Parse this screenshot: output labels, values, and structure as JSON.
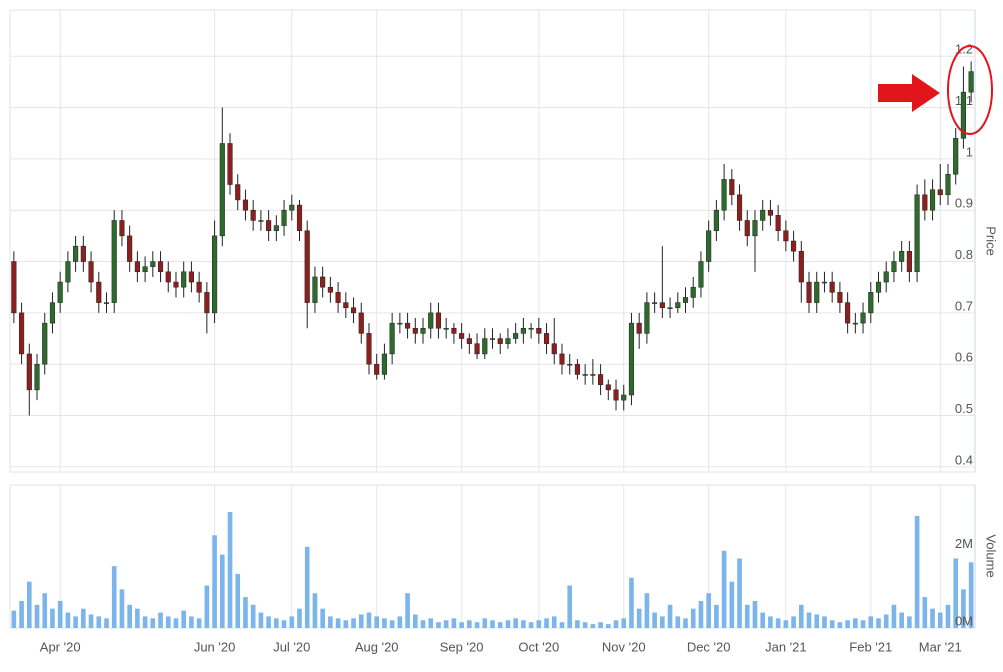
{
  "chart_data": [
    {
      "type": "candlestick",
      "categories": [
        null,
        null,
        null,
        null,
        null,
        null,
        "Apr '20",
        null,
        null,
        null,
        null,
        null,
        null,
        null,
        null,
        null,
        null,
        null,
        null,
        null,
        null,
        null,
        null,
        null,
        null,
        null,
        "Jun '20",
        null,
        null,
        null,
        null,
        null,
        null,
        null,
        null,
        null,
        "Jul '20",
        null,
        null,
        null,
        null,
        null,
        null,
        null,
        null,
        null,
        null,
        "Aug '20",
        null,
        null,
        null,
        null,
        null,
        null,
        null,
        null,
        null,
        null,
        "Sep '20",
        null,
        null,
        null,
        null,
        null,
        null,
        null,
        null,
        null,
        "Oct '20",
        null,
        null,
        null,
        null,
        null,
        null,
        null,
        null,
        null,
        null,
        "Nov '20",
        null,
        null,
        null,
        null,
        null,
        null,
        null,
        null,
        null,
        null,
        "Dec '20",
        null,
        null,
        null,
        null,
        null,
        null,
        null,
        null,
        null,
        "Jan '21",
        null,
        null,
        null,
        null,
        null,
        null,
        null,
        null,
        null,
        null,
        "Feb '21",
        null,
        null,
        null,
        null,
        null,
        null,
        null,
        null,
        "Mar '21",
        null,
        null,
        null,
        null
      ],
      "open": [
        0.8,
        0.7,
        0.62,
        0.55,
        0.6,
        0.68,
        0.72,
        0.76,
        0.8,
        0.83,
        0.8,
        0.76,
        0.72,
        0.72,
        0.88,
        0.85,
        0.8,
        0.78,
        0.79,
        0.8,
        0.78,
        0.76,
        0.75,
        0.78,
        0.76,
        0.74,
        0.7,
        0.85,
        1.03,
        0.95,
        0.92,
        0.9,
        0.88,
        0.88,
        0.86,
        0.87,
        0.9,
        0.91,
        0.86,
        0.72,
        0.77,
        0.75,
        0.74,
        0.72,
        0.71,
        0.7,
        0.66,
        0.6,
        0.58,
        0.62,
        0.68,
        0.68,
        0.67,
        0.66,
        0.67,
        0.7,
        0.67,
        0.67,
        0.66,
        0.65,
        0.64,
        0.62,
        0.65,
        0.65,
        0.64,
        0.65,
        0.66,
        0.67,
        0.67,
        0.66,
        0.64,
        0.62,
        0.6,
        0.6,
        0.58,
        0.58,
        0.58,
        0.56,
        0.55,
        0.53,
        0.54,
        0.68,
        0.66,
        0.72,
        0.72,
        0.71,
        0.71,
        0.72,
        0.73,
        0.75,
        0.8,
        0.86,
        0.9,
        0.96,
        0.93,
        0.88,
        0.85,
        0.88,
        0.9,
        0.89,
        0.86,
        0.84,
        0.82,
        0.76,
        0.72,
        0.76,
        0.76,
        0.74,
        0.72,
        0.68,
        0.68,
        0.7,
        0.74,
        0.76,
        0.78,
        0.8,
        0.82,
        0.78,
        0.93,
        0.9,
        0.94,
        0.93,
        0.97,
        1.04,
        1.13
      ],
      "high": [
        0.82,
        0.72,
        0.64,
        0.62,
        0.7,
        0.74,
        0.78,
        0.82,
        0.85,
        0.85,
        0.82,
        0.78,
        0.74,
        0.9,
        0.9,
        0.87,
        0.82,
        0.81,
        0.82,
        0.82,
        0.8,
        0.78,
        0.8,
        0.8,
        0.78,
        0.76,
        0.88,
        1.1,
        1.05,
        0.97,
        0.94,
        0.92,
        0.9,
        0.9,
        0.89,
        0.92,
        0.93,
        0.92,
        0.88,
        0.79,
        0.79,
        0.77,
        0.76,
        0.74,
        0.73,
        0.72,
        0.68,
        0.62,
        0.64,
        0.7,
        0.7,
        0.7,
        0.69,
        0.69,
        0.72,
        0.72,
        0.69,
        0.68,
        0.68,
        0.66,
        0.66,
        0.67,
        0.67,
        0.66,
        0.67,
        0.68,
        0.69,
        0.68,
        0.69,
        0.68,
        0.69,
        0.64,
        0.62,
        0.61,
        0.6,
        0.61,
        0.6,
        0.57,
        0.57,
        0.56,
        0.7,
        0.7,
        0.74,
        0.74,
        0.83,
        0.73,
        0.74,
        0.75,
        0.77,
        0.82,
        0.88,
        0.92,
        0.99,
        0.98,
        0.95,
        0.9,
        0.9,
        0.92,
        0.92,
        0.91,
        0.88,
        0.86,
        0.84,
        0.78,
        0.78,
        0.78,
        0.78,
        0.76,
        0.74,
        0.7,
        0.72,
        0.76,
        0.78,
        0.8,
        0.82,
        0.84,
        0.84,
        0.95,
        0.96,
        0.96,
        0.99,
        0.99,
        1.06,
        1.18,
        1.19
      ],
      "low": [
        0.68,
        0.6,
        0.5,
        0.53,
        0.58,
        0.66,
        0.7,
        0.74,
        0.78,
        0.78,
        0.74,
        0.7,
        0.7,
        0.7,
        0.83,
        0.78,
        0.76,
        0.76,
        0.77,
        0.76,
        0.74,
        0.73,
        0.73,
        0.74,
        0.72,
        0.66,
        0.68,
        0.83,
        0.93,
        0.9,
        0.88,
        0.86,
        0.86,
        0.84,
        0.84,
        0.85,
        0.88,
        0.84,
        0.67,
        0.7,
        0.73,
        0.72,
        0.7,
        0.69,
        0.68,
        0.64,
        0.58,
        0.57,
        0.57,
        0.6,
        0.66,
        0.65,
        0.64,
        0.64,
        0.65,
        0.65,
        0.65,
        0.64,
        0.63,
        0.62,
        0.61,
        0.61,
        0.63,
        0.62,
        0.63,
        0.64,
        0.64,
        0.65,
        0.64,
        0.62,
        0.6,
        0.58,
        0.58,
        0.57,
        0.56,
        0.56,
        0.54,
        0.53,
        0.51,
        0.51,
        0.52,
        0.63,
        0.64,
        0.7,
        0.69,
        0.69,
        0.7,
        0.7,
        0.71,
        0.73,
        0.78,
        0.84,
        0.88,
        0.91,
        0.86,
        0.83,
        0.78,
        0.86,
        0.87,
        0.84,
        0.82,
        0.8,
        0.72,
        0.7,
        0.7,
        0.74,
        0.72,
        0.7,
        0.66,
        0.66,
        0.66,
        0.68,
        0.72,
        0.74,
        0.76,
        0.78,
        0.76,
        0.76,
        0.88,
        0.88,
        0.91,
        0.91,
        0.95,
        1.02,
        1.11
      ],
      "close": [
        0.7,
        0.62,
        0.55,
        0.6,
        0.68,
        0.72,
        0.76,
        0.8,
        0.83,
        0.8,
        0.76,
        0.72,
        0.72,
        0.88,
        0.85,
        0.8,
        0.78,
        0.79,
        0.8,
        0.78,
        0.76,
        0.75,
        0.78,
        0.76,
        0.74,
        0.7,
        0.85,
        1.03,
        0.95,
        0.92,
        0.9,
        0.88,
        0.88,
        0.86,
        0.87,
        0.9,
        0.91,
        0.86,
        0.72,
        0.77,
        0.75,
        0.74,
        0.72,
        0.71,
        0.7,
        0.66,
        0.6,
        0.58,
        0.62,
        0.68,
        0.68,
        0.67,
        0.66,
        0.67,
        0.7,
        0.67,
        0.67,
        0.66,
        0.65,
        0.64,
        0.62,
        0.65,
        0.65,
        0.64,
        0.65,
        0.66,
        0.67,
        0.67,
        0.66,
        0.64,
        0.62,
        0.6,
        0.6,
        0.58,
        0.58,
        0.58,
        0.56,
        0.55,
        0.53,
        0.54,
        0.68,
        0.66,
        0.72,
        0.72,
        0.71,
        0.71,
        0.72,
        0.73,
        0.75,
        0.8,
        0.86,
        0.9,
        0.96,
        0.93,
        0.88,
        0.85,
        0.88,
        0.9,
        0.89,
        0.86,
        0.84,
        0.82,
        0.76,
        0.72,
        0.76,
        0.76,
        0.74,
        0.72,
        0.68,
        0.68,
        0.7,
        0.74,
        0.76,
        0.78,
        0.8,
        0.82,
        0.78,
        0.93,
        0.9,
        0.94,
        0.93,
        0.97,
        1.04,
        1.13,
        1.17
      ],
      "up_color": "#2d6b2d",
      "down_color": "#8e1f1f",
      "ylim": [
        0.39,
        1.29
      ],
      "yticks": [
        0.4,
        0.5,
        0.6,
        0.7,
        0.8,
        0.9,
        1,
        1.1,
        1.2
      ],
      "y_label": "Price",
      "grid": true
    },
    {
      "type": "bar",
      "color": "#7cb5ec",
      "values": [
        450000,
        700000,
        1200000,
        600000,
        900000,
        500000,
        700000,
        400000,
        300000,
        500000,
        350000,
        300000,
        250000,
        1600000,
        1000000,
        600000,
        500000,
        300000,
        250000,
        400000,
        300000,
        250000,
        450000,
        300000,
        250000,
        1100000,
        2400000,
        1900000,
        3000000,
        1400000,
        800000,
        600000,
        400000,
        300000,
        250000,
        200000,
        300000,
        500000,
        2100000,
        900000,
        500000,
        300000,
        250000,
        200000,
        250000,
        350000,
        400000,
        300000,
        250000,
        200000,
        300000,
        900000,
        350000,
        200000,
        250000,
        150000,
        200000,
        250000,
        150000,
        200000,
        150000,
        250000,
        200000,
        150000,
        200000,
        250000,
        200000,
        150000,
        200000,
        250000,
        300000,
        150000,
        1100000,
        200000,
        150000,
        100000,
        150000,
        100000,
        200000,
        250000,
        1300000,
        500000,
        900000,
        400000,
        300000,
        600000,
        300000,
        250000,
        500000,
        700000,
        900000,
        600000,
        2000000,
        1200000,
        1800000,
        600000,
        700000,
        400000,
        300000,
        250000,
        200000,
        300000,
        600000,
        400000,
        350000,
        300000,
        200000,
        150000,
        200000,
        250000,
        200000,
        300000,
        250000,
        350000,
        600000,
        400000,
        300000,
        2900000,
        800000,
        500000,
        400000,
        600000,
        1800000,
        1000000,
        1700000
      ],
      "ylim": [
        0,
        3700000
      ],
      "yticks": [
        {
          "value": 0,
          "label": "0M"
        },
        {
          "value": 2000000,
          "label": "2M"
        }
      ],
      "y_label": "Volume",
      "grid": false
    }
  ]
}
